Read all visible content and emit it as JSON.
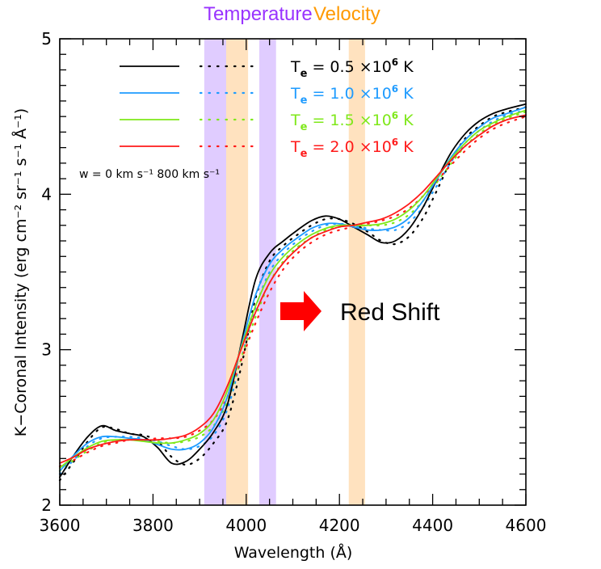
{
  "chart_data": {
    "type": "line",
    "title": "",
    "header_labels": [
      {
        "text": "Temperature",
        "color": "#9933ff"
      },
      {
        "text": "Velocity",
        "color": "#ff9900"
      }
    ],
    "xlabel": "Wavelength (Å)",
    "ylabel": "K−Coronal Intensity (erg cm⁻² sr⁻¹ s⁻¹ Å⁻¹)",
    "xlim": [
      3600,
      4600
    ],
    "ylim": [
      2,
      5
    ],
    "xticks": [
      3600,
      3800,
      4000,
      4200,
      4400,
      4600
    ],
    "xtick_labels": [
      "3600",
      "3800",
      "4000",
      "4200",
      "4400",
      "4600"
    ],
    "x_minor_step": 50,
    "yticks": [
      2,
      3,
      4,
      5
    ],
    "ytick_labels": [
      "2",
      "3",
      "4",
      "5"
    ],
    "y_minor_step": 0.1,
    "grid": false,
    "bands": [
      {
        "name": "temperature-band-1",
        "type": "Temperature",
        "range": [
          3910,
          3957
        ],
        "color": "#e0ccff"
      },
      {
        "name": "velocity-band-1",
        "type": "Velocity",
        "range": [
          3957,
          4004
        ],
        "color": "#ffe2bf"
      },
      {
        "name": "temperature-band-2",
        "type": "Temperature",
        "range": [
          4028,
          4064
        ],
        "color": "#e0ccff"
      },
      {
        "name": "velocity-band-2",
        "type": "Velocity",
        "range": [
          4220,
          4255
        ],
        "color": "#ffe2bf"
      }
    ],
    "legend": {
      "placement": "top-left",
      "velocity_label_prefix": "w = ",
      "velocity_solid": "0 km s⁻¹",
      "velocity_dotted": "800 km s⁻¹",
      "entries": [
        {
          "label_pre": "T",
          "label_sub": "e",
          "label_mid": " =  0.5 ×10",
          "label_sup": "6",
          "label_post": " K",
          "color": "#000000"
        },
        {
          "label_pre": "T",
          "label_sub": "e",
          "label_mid": " =  1.0 ×10",
          "label_sup": "6",
          "label_post": " K",
          "color": "#1e9bff"
        },
        {
          "label_pre": "T",
          "label_sub": "e",
          "label_mid": " =  1.5 ×10",
          "label_sup": "6",
          "label_post": " K",
          "color": "#7fe81a"
        },
        {
          "label_pre": "T",
          "label_sub": "e",
          "label_mid": " =  2.0 ×10",
          "label_sup": "6",
          "label_post": " K",
          "color": "#ff1a1a"
        }
      ]
    },
    "annotation": {
      "text": "Red Shift",
      "arrow_color": "#ff0000",
      "arrow_direction": "right"
    },
    "x": [
      3600,
      3630,
      3660,
      3690,
      3720,
      3750,
      3780,
      3810,
      3840,
      3870,
      3900,
      3930,
      3960,
      3990,
      4020,
      4050,
      4080,
      4110,
      4140,
      4170,
      4200,
      4230,
      4260,
      4290,
      4320,
      4350,
      4380,
      4410,
      4440,
      4470,
      4500,
      4530,
      4560,
      4600
    ],
    "series": [
      {
        "name": "Te = 0.5e6 K, w = 0",
        "color": "#000000",
        "style": "solid",
        "values": [
          2.18,
          2.32,
          2.44,
          2.51,
          2.48,
          2.46,
          2.44,
          2.37,
          2.27,
          2.28,
          2.36,
          2.47,
          2.65,
          3.05,
          3.45,
          3.62,
          3.7,
          3.77,
          3.83,
          3.86,
          3.84,
          3.79,
          3.74,
          3.69,
          3.7,
          3.78,
          3.92,
          4.1,
          4.27,
          4.39,
          4.47,
          4.52,
          4.55,
          4.58
        ]
      },
      {
        "name": "Te = 0.5e6 K, w = 800",
        "color": "#000000",
        "style": "dotted",
        "values": [
          2.16,
          2.28,
          2.41,
          2.5,
          2.49,
          2.46,
          2.45,
          2.41,
          2.31,
          2.26,
          2.3,
          2.4,
          2.55,
          2.9,
          3.33,
          3.57,
          3.67,
          3.74,
          3.8,
          3.84,
          3.84,
          3.81,
          3.76,
          3.7,
          3.68,
          3.73,
          3.85,
          4.03,
          4.22,
          4.36,
          4.44,
          4.5,
          4.53,
          4.56
        ]
      },
      {
        "name": "Te = 1.0e6 K, w = 0",
        "color": "#1e9bff",
        "style": "solid",
        "values": [
          2.22,
          2.32,
          2.4,
          2.44,
          2.44,
          2.43,
          2.42,
          2.39,
          2.36,
          2.36,
          2.4,
          2.5,
          2.7,
          3.03,
          3.35,
          3.55,
          3.65,
          3.72,
          3.78,
          3.81,
          3.81,
          3.79,
          3.77,
          3.77,
          3.79,
          3.85,
          3.96,
          4.1,
          4.24,
          4.35,
          4.43,
          4.49,
          4.52,
          4.56
        ]
      },
      {
        "name": "Te = 1.0e6 K, w = 800",
        "color": "#1e9bff",
        "style": "dotted",
        "values": [
          2.2,
          2.29,
          2.38,
          2.43,
          2.44,
          2.44,
          2.43,
          2.41,
          2.38,
          2.36,
          2.38,
          2.45,
          2.62,
          2.95,
          3.27,
          3.5,
          3.62,
          3.7,
          3.76,
          3.8,
          3.81,
          3.8,
          3.78,
          3.77,
          3.77,
          3.82,
          3.92,
          4.06,
          4.21,
          4.33,
          4.41,
          4.47,
          4.51,
          4.54
        ]
      },
      {
        "name": "Te = 1.5e6 K, w = 0",
        "color": "#7fe81a",
        "style": "solid",
        "values": [
          2.24,
          2.31,
          2.37,
          2.41,
          2.42,
          2.42,
          2.41,
          2.4,
          2.4,
          2.42,
          2.46,
          2.55,
          2.74,
          3.02,
          3.28,
          3.48,
          3.6,
          3.68,
          3.74,
          3.78,
          3.8,
          3.8,
          3.8,
          3.81,
          3.84,
          3.9,
          3.99,
          4.11,
          4.23,
          4.33,
          4.41,
          4.46,
          4.5,
          4.54
        ]
      },
      {
        "name": "Te = 1.5e6 K, w = 800",
        "color": "#7fe81a",
        "style": "dotted",
        "values": [
          2.22,
          2.29,
          2.35,
          2.4,
          2.42,
          2.42,
          2.42,
          2.41,
          2.4,
          2.41,
          2.44,
          2.51,
          2.67,
          2.95,
          3.21,
          3.43,
          3.57,
          3.66,
          3.72,
          3.77,
          3.79,
          3.8,
          3.8,
          3.8,
          3.82,
          3.87,
          3.96,
          4.08,
          4.2,
          4.31,
          4.39,
          4.45,
          4.49,
          4.53
        ]
      },
      {
        "name": "Te = 2.0e6 K, w = 0",
        "color": "#ff1a1a",
        "style": "solid",
        "values": [
          2.27,
          2.31,
          2.36,
          2.39,
          2.41,
          2.42,
          2.42,
          2.42,
          2.43,
          2.45,
          2.5,
          2.59,
          2.77,
          3.01,
          3.24,
          3.43,
          3.56,
          3.65,
          3.72,
          3.76,
          3.79,
          3.8,
          3.82,
          3.84,
          3.88,
          3.94,
          4.02,
          4.12,
          4.22,
          4.31,
          4.38,
          4.44,
          4.48,
          4.51
        ]
      },
      {
        "name": "Te = 2.0e6 K, w = 800",
        "color": "#ff1a1a",
        "style": "dotted",
        "values": [
          2.25,
          2.29,
          2.34,
          2.38,
          2.4,
          2.42,
          2.42,
          2.43,
          2.43,
          2.44,
          2.48,
          2.55,
          2.7,
          2.94,
          3.17,
          3.37,
          3.52,
          3.62,
          3.69,
          3.74,
          3.77,
          3.79,
          3.81,
          3.83,
          3.86,
          3.91,
          3.99,
          4.09,
          4.19,
          4.28,
          4.36,
          4.42,
          4.46,
          4.5
        ]
      }
    ]
  }
}
